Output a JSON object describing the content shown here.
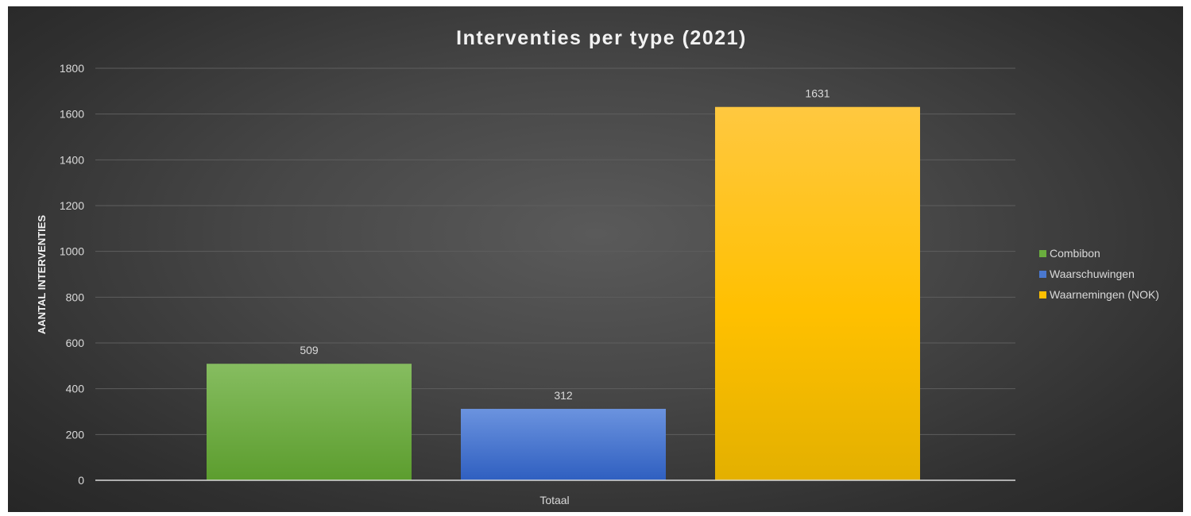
{
  "chart_data": {
    "type": "bar",
    "title": "Interventies per type (2021)",
    "xlabel": "",
    "ylabel": "AANTAL INTERVENTIES",
    "categories": [
      "Totaal"
    ],
    "series": [
      {
        "name": "Combibon",
        "values": [
          509
        ],
        "color": "#6aad3e"
      },
      {
        "name": "Waarschuwingen",
        "values": [
          312
        ],
        "color": "#4a78d0"
      },
      {
        "name": "Waarnemingen (NOK)",
        "values": [
          1631
        ],
        "color": "#ffc000"
      }
    ],
    "ylim": [
      0,
      1800
    ],
    "yticks": [
      0,
      200,
      400,
      600,
      800,
      1000,
      1200,
      1400,
      1600,
      1800
    ],
    "grid": true,
    "legend_position": "right",
    "data_labels": true
  }
}
